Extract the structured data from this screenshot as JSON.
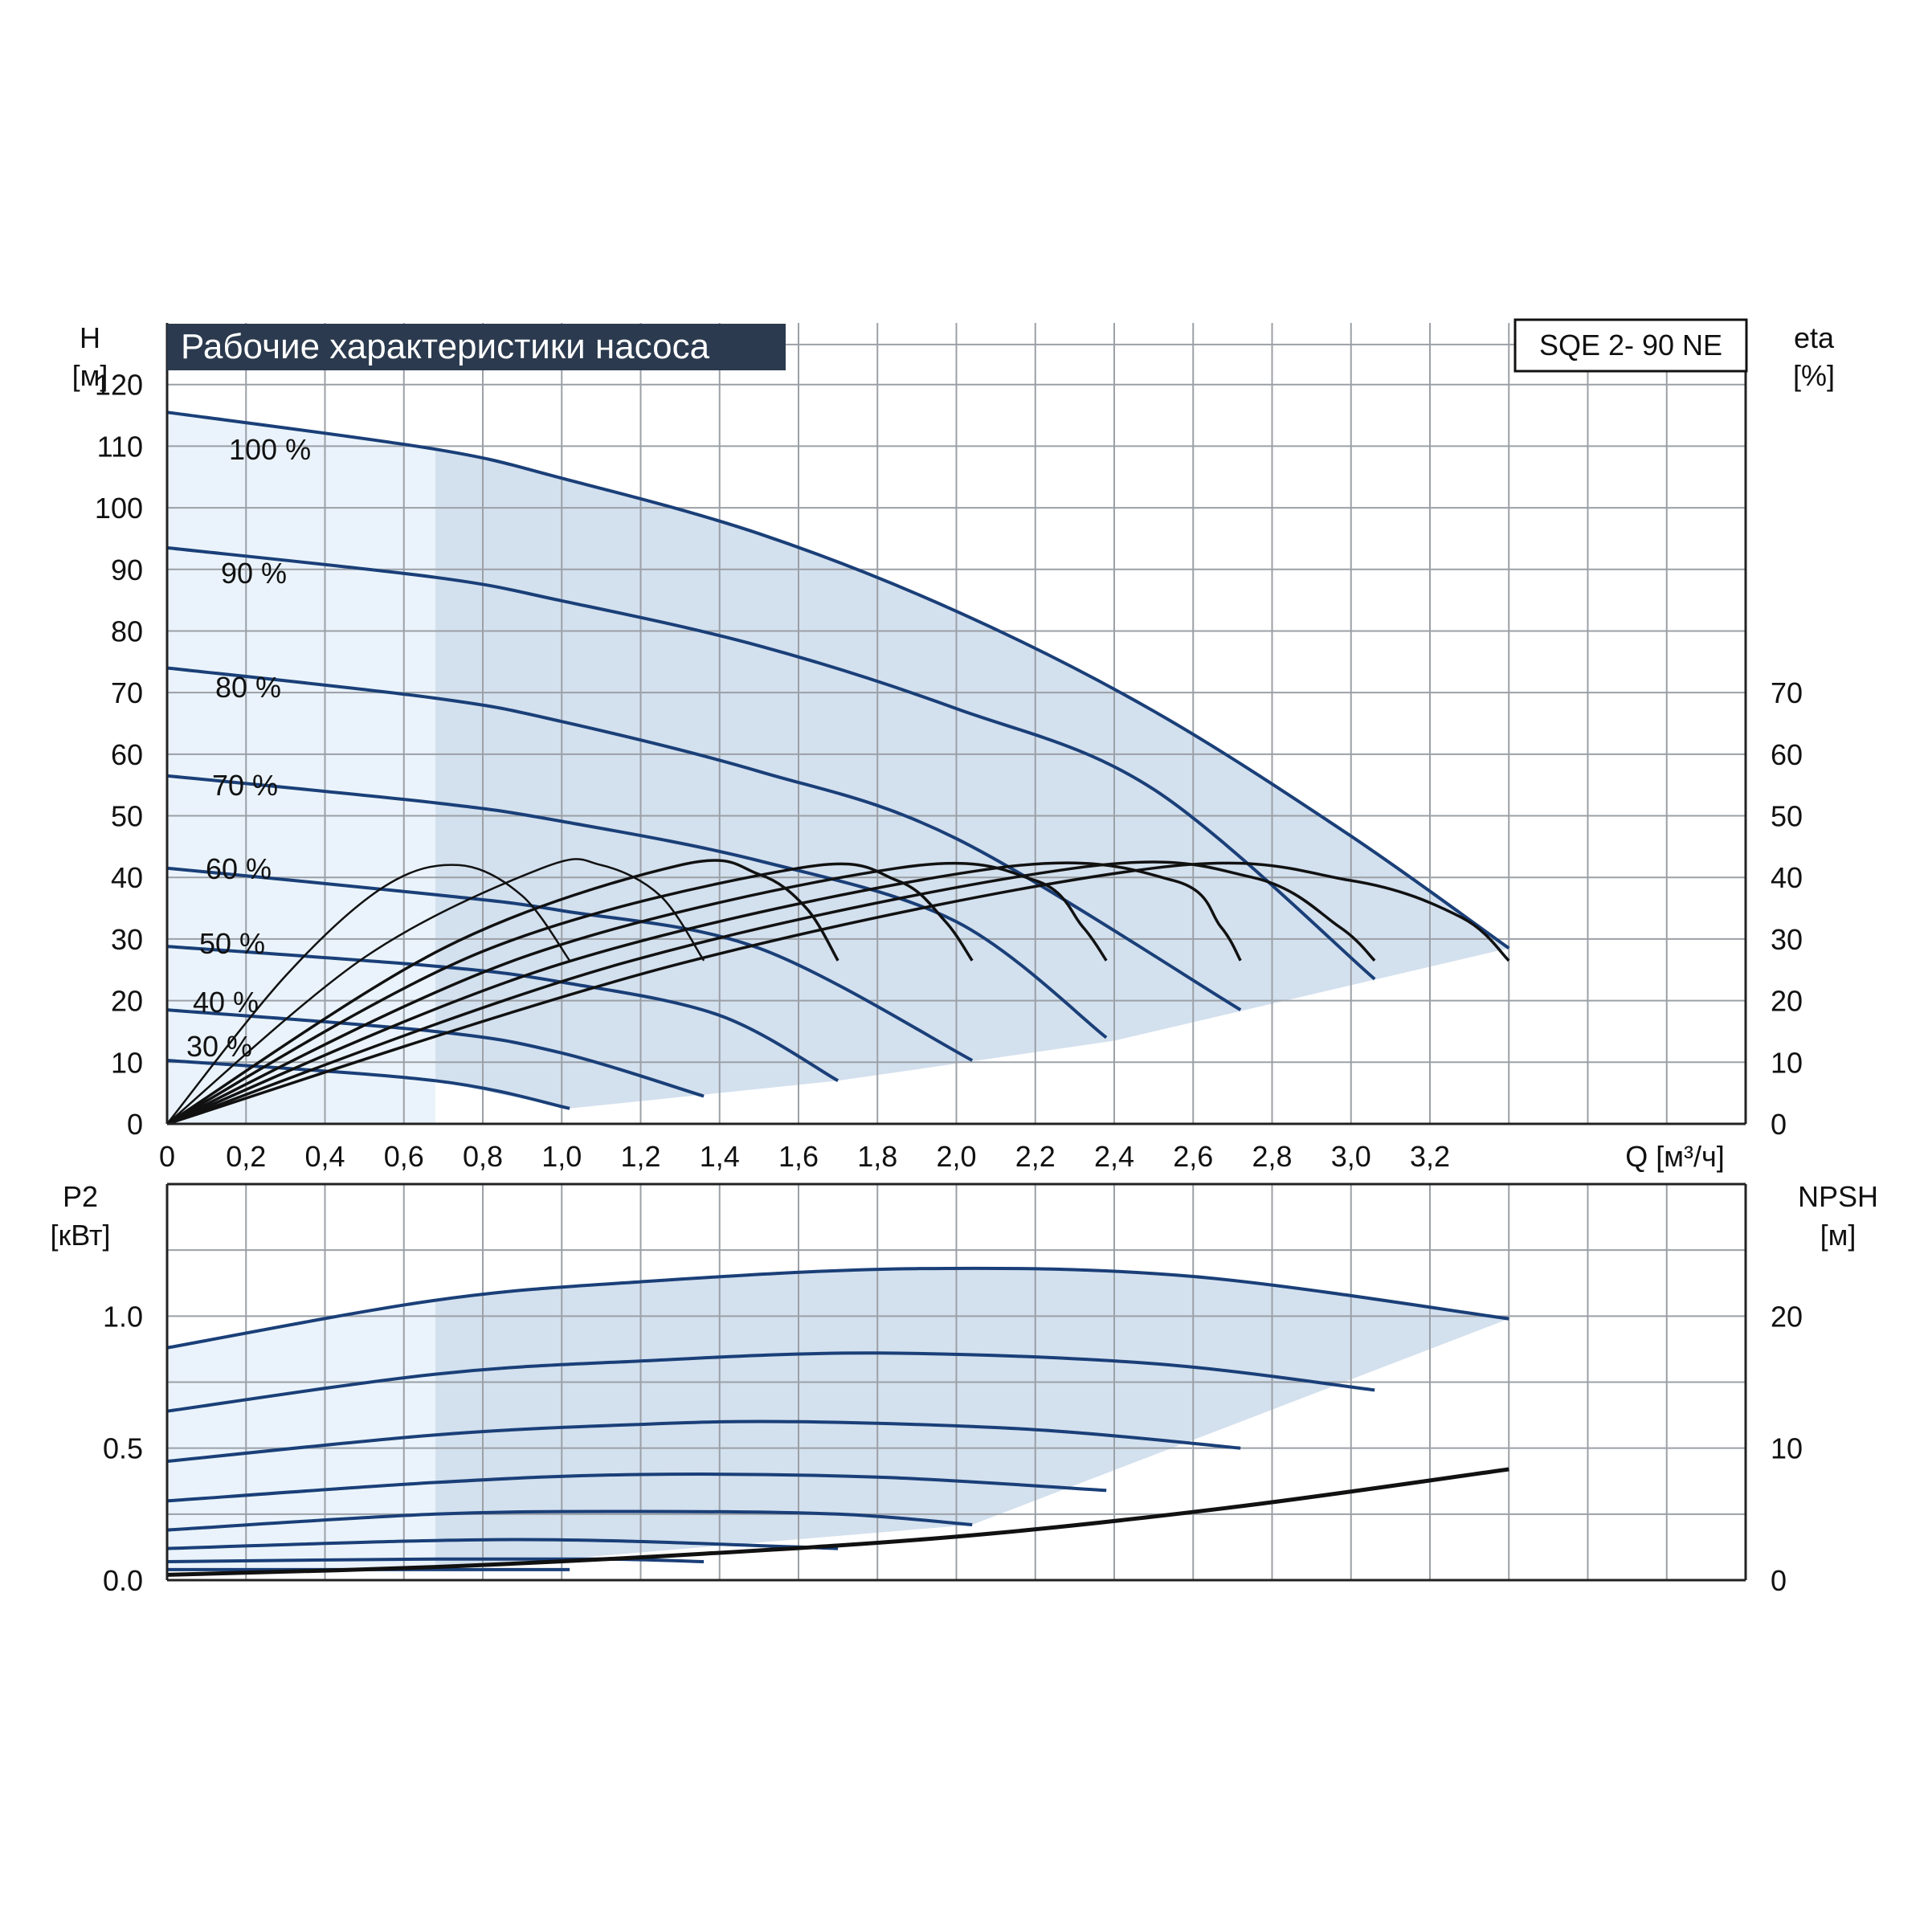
{
  "header": {
    "title": "Рабочие характеристики насоса",
    "model": "SQE 2- 90 NE"
  },
  "colors": {
    "background": "#ffffff",
    "header_bg": "#2b3a4e",
    "header_text": "#ffffff",
    "grid": "#9ba0a6",
    "fill_light": "#eaf3fb",
    "fill_main": "#d3e0ee",
    "curve_blue": "#1a3f78",
    "curve_black": "#111111"
  },
  "chart_data": [
    {
      "name": "head",
      "type": "line",
      "xlabel": "Q [м³/ч]",
      "ylabel_line1": "H",
      "ylabel_line2": "[м]",
      "y2label_line1": "eta",
      "y2label_line2": "[%]",
      "xlim": [
        0,
        4.0
      ],
      "ylim": [
        0,
        130
      ],
      "xticks": [
        0,
        0.2,
        0.4,
        0.6,
        0.8,
        1.0,
        1.2,
        1.4,
        1.6,
        1.8,
        2.0,
        2.2,
        2.4,
        2.6,
        2.8,
        3.0,
        3.2
      ],
      "xtick_labels": [
        "0",
        "0,2",
        "0,4",
        "0,6",
        "0,8",
        "1,0",
        "1,2",
        "1,4",
        "1,6",
        "1,8",
        "2,0",
        "2,2",
        "2,4",
        "2,6",
        "2,8",
        "3,0",
        "3,2"
      ],
      "yticks": [
        0,
        10,
        20,
        30,
        40,
        50,
        60,
        70,
        80,
        90,
        100,
        110,
        120
      ],
      "ytick_labels": [
        "0",
        "10",
        "20",
        "30",
        "40",
        "50",
        "60",
        "70",
        "80",
        "90",
        "100",
        "110",
        "120"
      ],
      "y2ticks": [
        0,
        10,
        20,
        30,
        40,
        50,
        60,
        70
      ],
      "y2tick_labels": [
        "0",
        "10",
        "20",
        "30",
        "40",
        "50",
        "60",
        "70"
      ],
      "grid": true,
      "series": [
        {
          "name": "100 %",
          "x": [
            0,
            0.68,
            1.0,
            1.5,
            2.0,
            2.5,
            3.0,
            3.4
          ],
          "y": [
            115.5,
            109.5,
            104.8,
            95.8,
            83.2,
            67,
            46.7,
            28.5
          ]
        },
        {
          "name": "90 %",
          "x": [
            0,
            0.68,
            1.0,
            1.5,
            2.0,
            2.5,
            3.06
          ],
          "y": [
            93.5,
            88.7,
            84.9,
            77.6,
            67.4,
            54.3,
            23.5
          ]
        },
        {
          "name": "80 %",
          "x": [
            0,
            0.68,
            1.0,
            1.5,
            2.0,
            2.72
          ],
          "y": [
            74,
            69.1,
            65.3,
            57.2,
            46.3,
            18.5
          ]
        },
        {
          "name": "70 %",
          "x": [
            0,
            0.68,
            1.0,
            1.5,
            2.0,
            2.38
          ],
          "y": [
            56.5,
            52.1,
            49.1,
            42.7,
            32.8,
            14
          ]
        },
        {
          "name": "60 %",
          "x": [
            0,
            0.68,
            1.0,
            1.5,
            2.04
          ],
          "y": [
            41.5,
            37.2,
            34.6,
            28.5,
            10.3
          ]
        },
        {
          "name": "50 %",
          "x": [
            0,
            0.68,
            1.0,
            1.4,
            1.7
          ],
          "y": [
            28.8,
            25.6,
            23,
            17.6,
            7
          ]
        },
        {
          "name": "40 %",
          "x": [
            0,
            0.68,
            1.0,
            1.36
          ],
          "y": [
            18.5,
            15,
            11.5,
            4.5
          ]
        },
        {
          "name": "30 %",
          "x": [
            0,
            0.68,
            1.02
          ],
          "y": [
            10.3,
            7,
            2.5
          ]
        }
      ],
      "efficiency_curves": [
        {
          "x": [
            0,
            0.3,
            0.55,
            0.74,
            0.9,
            1.02
          ],
          "y": [
            0,
            24,
            38.5,
            42,
            37,
            26.5
          ]
        },
        {
          "x": [
            0,
            0.5,
            0.95,
            1.1,
            1.25,
            1.36
          ],
          "y": [
            0,
            27,
            41.5,
            42,
            37,
            26.5
          ]
        },
        {
          "x": [
            0,
            0.7,
            1.3,
            1.5,
            1.62,
            1.7
          ],
          "y": [
            0,
            28.5,
            42,
            40.5,
            35,
            26.5
          ]
        },
        {
          "x": [
            0,
            0.8,
            1.6,
            1.85,
            1.97,
            2.04
          ],
          "y": [
            0,
            28,
            41.5,
            39.5,
            33,
            26.5
          ]
        },
        {
          "x": [
            0,
            0.9,
            1.85,
            2.2,
            2.32,
            2.38
          ],
          "y": [
            0,
            27,
            41.5,
            39.5,
            32,
            26.5
          ]
        },
        {
          "x": [
            0,
            1.0,
            2.1,
            2.55,
            2.67,
            2.72
          ],
          "y": [
            0,
            26,
            41.5,
            39.5,
            32,
            26.5
          ]
        },
        {
          "x": [
            0,
            1.15,
            2.3,
            2.75,
            2.97,
            3.06
          ],
          "y": [
            0,
            26,
            41.5,
            40,
            32,
            26.5
          ]
        },
        {
          "x": [
            0,
            1.3,
            2.5,
            3.0,
            3.28,
            3.4
          ],
          "y": [
            0,
            26,
            41.5,
            39.5,
            33.5,
            26.5
          ]
        }
      ]
    },
    {
      "name": "power",
      "type": "line",
      "ylabel_line1": "P2",
      "ylabel_line2": "[кВт]",
      "y2label_line1": "NPSH",
      "y2label_line2": "[м]",
      "xlim": [
        0,
        4.0
      ],
      "ylim": [
        0,
        1.5
      ],
      "yticks": [
        0,
        0.5,
        1.0
      ],
      "ytick_labels": [
        "0.0",
        "0.5",
        "1.0"
      ],
      "y2ticks": [
        0,
        0.5,
        1.0
      ],
      "y2tick_labels": [
        "0",
        "10",
        "20"
      ],
      "grid": true,
      "series": [
        {
          "name": "100 %",
          "x": [
            0,
            0.68,
            1.2,
            1.9,
            2.6,
            3.4
          ],
          "y": [
            0.88,
            1.06,
            1.13,
            1.18,
            1.15,
            0.99
          ]
        },
        {
          "name": "90 %",
          "x": [
            0,
            0.68,
            1.2,
            1.8,
            2.5,
            3.06
          ],
          "y": [
            0.64,
            0.78,
            0.83,
            0.86,
            0.82,
            0.72
          ]
        },
        {
          "name": "80 %",
          "x": [
            0,
            0.68,
            1.2,
            1.6,
            2.2,
            2.72
          ],
          "y": [
            0.45,
            0.55,
            0.59,
            0.6,
            0.57,
            0.5
          ]
        },
        {
          "name": "70 %",
          "x": [
            0,
            0.68,
            1.2,
            1.8,
            2.38
          ],
          "y": [
            0.3,
            0.37,
            0.4,
            0.39,
            0.34
          ]
        },
        {
          "name": "60 %",
          "x": [
            0,
            0.68,
            1.2,
            1.7,
            2.04
          ],
          "y": [
            0.19,
            0.25,
            0.26,
            0.25,
            0.21
          ]
        },
        {
          "name": "50 %",
          "x": [
            0,
            0.68,
            1.1,
            1.7
          ],
          "y": [
            0.12,
            0.15,
            0.15,
            0.12
          ]
        },
        {
          "name": "40 %",
          "x": [
            0,
            0.68,
            1.1,
            1.36
          ],
          "y": [
            0.07,
            0.08,
            0.08,
            0.07
          ]
        },
        {
          "name": "30 %",
          "x": [
            0,
            0.68,
            1.02
          ],
          "y": [
            0.04,
            0.04,
            0.04
          ]
        }
      ],
      "npsh": {
        "x": [
          0,
          0.68,
          1.36,
          2.04,
          2.72,
          3.4
        ],
        "y": [
          0.02,
          0.05,
          0.1,
          0.17,
          0.28,
          0.42
        ]
      }
    }
  ]
}
